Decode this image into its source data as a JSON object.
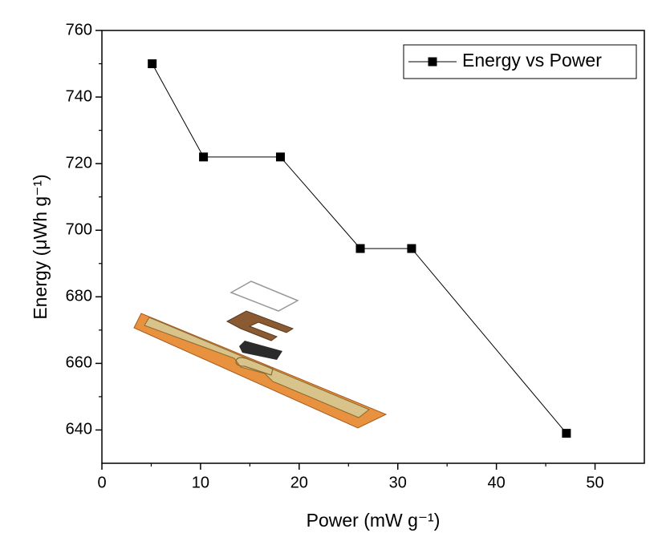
{
  "chart_data": {
    "type": "line",
    "xlabel": "Power (mW g⁻¹)",
    "ylabel": "Energy (μWh g⁻¹)",
    "x": [
      5.1,
      10.3,
      18.1,
      26.2,
      31.4,
      47.1
    ],
    "series": [
      {
        "name": "Energy vs Power",
        "color": "#000000",
        "marker": "square",
        "values": [
          750,
          722,
          722,
          694.5,
          694.5,
          639
        ]
      }
    ],
    "xlim": [
      0,
      55
    ],
    "xticks": [
      0,
      10,
      20,
      30,
      40,
      50
    ],
    "ylim": [
      630,
      760
    ],
    "yticks": [
      640,
      660,
      680,
      700,
      720,
      740,
      760
    ],
    "grid": false,
    "legend": "upper right"
  }
}
